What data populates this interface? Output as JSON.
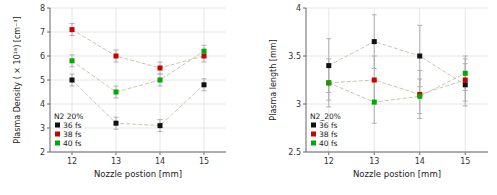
{
  "chart_data": [
    {
      "type": "line",
      "x_label": "Nozzle postion [mm]",
      "y_label": "Plasma Density ( × 10¹⁸) [cm⁻³]",
      "legend_title": "N2 20%",
      "legend": "lower left",
      "grid": true,
      "marker": "square",
      "line_style": "dashed",
      "x": [
        12,
        13,
        14,
        15
      ],
      "xlim": [
        11.5,
        15.5
      ],
      "xticks": [
        12,
        13,
        14,
        15
      ],
      "ylim": [
        2.0,
        8.0
      ],
      "yticks": [
        2,
        3,
        4,
        5,
        6,
        7,
        8
      ],
      "series": [
        {
          "name": "36 fs",
          "color": "#111111",
          "values": [
            5.0,
            3.2,
            3.1,
            4.8
          ],
          "errors": [
            0.25,
            0.25,
            0.25,
            0.25
          ]
        },
        {
          "name": "38 fs",
          "color": "#cc0000",
          "values": [
            7.1,
            6.0,
            5.5,
            6.0
          ],
          "errors": [
            0.25,
            0.25,
            0.25,
            0.25
          ]
        },
        {
          "name": "40 fs",
          "color": "#00aa00",
          "values": [
            5.8,
            4.5,
            5.0,
            6.2
          ],
          "errors": [
            0.25,
            0.25,
            0.25,
            0.25
          ]
        }
      ]
    },
    {
      "type": "line",
      "x_label": "Nozzle postion [mm]",
      "y_label": "Plasma length [mm]",
      "legend_title": "N2_20%",
      "legend": "lower left",
      "grid": true,
      "marker": "square",
      "line_style": "dashed",
      "x": [
        12,
        13,
        14,
        15
      ],
      "xlim": [
        11.5,
        15.5
      ],
      "xticks": [
        12,
        13,
        14,
        15
      ],
      "ylim": [
        2.5,
        4.0
      ],
      "yticks": [
        2.5,
        3.0,
        3.5,
        4.0
      ],
      "series": [
        {
          "name": "36 fs",
          "color": "#111111",
          "values": [
            3.4,
            3.65,
            3.5,
            3.2
          ],
          "errors": [
            0.28,
            0.28,
            0.32,
            0.22
          ]
        },
        {
          "name": "38 fs",
          "color": "#cc0000",
          "values": [
            3.22,
            3.25,
            3.1,
            3.25
          ],
          "errors": [
            0.25,
            0.25,
            0.25,
            0.22
          ]
        },
        {
          "name": "40 fs",
          "color": "#00aa00",
          "values": [
            3.22,
            3.02,
            3.08,
            3.32
          ],
          "errors": [
            0.18,
            0.22,
            0.18,
            0.18
          ]
        }
      ]
    }
  ]
}
